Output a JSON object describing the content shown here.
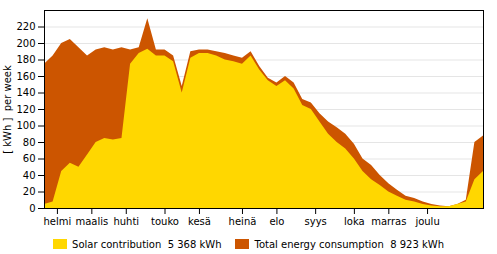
{
  "chart_data": {
    "type": "area",
    "x": [
      0,
      1,
      2,
      3,
      4,
      5,
      6,
      7,
      8,
      9,
      10,
      11,
      12,
      13,
      14,
      15,
      16,
      17,
      18,
      19,
      20,
      21,
      22,
      23,
      24,
      25,
      26,
      27,
      28,
      29,
      30,
      31,
      32,
      33,
      34,
      35,
      36,
      37,
      38,
      39,
      40,
      41,
      42,
      43,
      44,
      45,
      46,
      47,
      48,
      49,
      50,
      51
    ],
    "series": [
      {
        "name": "Solar contribution  5 368 kWh",
        "color": "#FFD700",
        "values": [
          5,
          8,
          45,
          55,
          50,
          65,
          80,
          85,
          83,
          85,
          175,
          188,
          193,
          185,
          185,
          178,
          140,
          182,
          188,
          188,
          185,
          180,
          178,
          175,
          185,
          168,
          155,
          148,
          155,
          145,
          125,
          120,
          105,
          90,
          80,
          72,
          60,
          45,
          35,
          28,
          20,
          15,
          10,
          8,
          5,
          3,
          2,
          2,
          5,
          8,
          35,
          45
        ]
      },
      {
        "name": "Total energy consumption  8 923 kWh",
        "color": "#CC5500",
        "values": [
          175,
          185,
          200,
          205,
          195,
          185,
          192,
          195,
          192,
          195,
          192,
          195,
          230,
          192,
          192,
          185,
          148,
          190,
          192,
          192,
          190,
          188,
          185,
          182,
          190,
          172,
          158,
          152,
          160,
          152,
          132,
          128,
          115,
          105,
          98,
          90,
          78,
          60,
          52,
          40,
          30,
          22,
          15,
          12,
          8,
          5,
          3,
          2,
          5,
          10,
          80,
          88
        ]
      }
    ],
    "ylabel": "[ kWh ]  per week",
    "xlim": [
      0,
      51
    ],
    "xticks": [
      {
        "value": 1.5,
        "label": "helmi"
      },
      {
        "value": 5.5,
        "label": "maalis"
      },
      {
        "value": 9.5,
        "label": "huhti"
      },
      {
        "value": 14,
        "label": "touko"
      },
      {
        "value": 18,
        "label": "kesä"
      },
      {
        "value": 23,
        "label": "heinä"
      },
      {
        "value": 27,
        "label": "elo"
      },
      {
        "value": 31.5,
        "label": "syys"
      },
      {
        "value": 36,
        "label": "loka"
      },
      {
        "value": 40,
        "label": "marras"
      },
      {
        "value": 44.5,
        "label": "joulu"
      }
    ],
    "ylim": [
      0,
      240
    ],
    "yticks": [
      0,
      20,
      40,
      60,
      80,
      100,
      120,
      140,
      160,
      180,
      200,
      220
    ],
    "grid": true,
    "legend": "bottom"
  }
}
